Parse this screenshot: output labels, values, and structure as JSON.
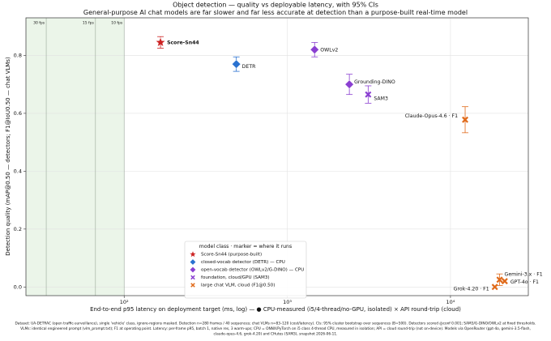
{
  "chart_data": {
    "type": "scatter",
    "title": "Object detection — quality vs deployable latency, with 95% CIs",
    "subtitle": "General-purpose AI chat models are far slower and far less accurate at detection than a purpose-built real-time model",
    "x_label": "End-to-end p95 latency on deployment target (ms, log)  —  ● CPU-measured (i5/4-thread/no-GPU, isolated)    × API round-trip (cloud)",
    "y_label": "Detection quality   (mAP@0.50 — detectors;  F1@IoU0.50 — chat VLMs)",
    "log_x": true,
    "grid": true,
    "xlim": [
      25,
      30000
    ],
    "ylim": [
      -0.03,
      0.93
    ],
    "xticks": [
      {
        "value": 100,
        "label": "10²"
      },
      {
        "value": 1000,
        "label": "10³"
      },
      {
        "value": 10000,
        "label": "10⁴"
      }
    ],
    "yticks": [
      {
        "value": 0,
        "label": "0.0"
      },
      {
        "value": 0.2,
        "label": "0.2"
      },
      {
        "value": 0.4,
        "label": "0.4"
      },
      {
        "value": 0.6,
        "label": "0.6"
      },
      {
        "value": 0.8,
        "label": "0.8"
      }
    ],
    "fps_lines": [
      {
        "value": 33.3,
        "label": "30 fps"
      },
      {
        "value": 66.7,
        "label": "15 fps"
      },
      {
        "value": 100,
        "label": "10 fps"
      }
    ],
    "legend_title": "model class  ·  marker = where it runs",
    "legend_position": "lower center",
    "series": [
      {
        "name": "Score-Sn44 (purpose-built)",
        "color": "#cc2222",
        "marker": "star",
        "x": [
          167
        ],
        "values": [
          0.845
        ],
        "errors": [
          0.02
        ],
        "point_labels": [
          "Score-Sn44"
        ]
      },
      {
        "name": "closed-vocab detector (DETR) — CPU",
        "color": "#2a72d0",
        "marker": "diamond",
        "x": [
          487
        ],
        "values": [
          0.77
        ],
        "errors": [
          0.025
        ],
        "point_labels": [
          "DETR"
        ]
      },
      {
        "name": "open-vocab detector (OWLv2/G-DINO) — CPU",
        "color": "#8a3fd1",
        "marker": "diamond",
        "x": [
          1470,
          2400
        ],
        "values": [
          0.82,
          0.7
        ],
        "errors": [
          0.025,
          0.035
        ],
        "point_labels": [
          "OWLv2",
          "Grounding-DINO"
        ]
      },
      {
        "name": "foundation, cloud/GPU (SAM3)",
        "color": "#8a3fd1",
        "marker": "x",
        "x": [
          3130
        ],
        "values": [
          0.665
        ],
        "errors": [
          0.03
        ],
        "point_labels": [
          "SAM3"
        ]
      },
      {
        "name": "large chat VLM, cloud (F1@0.50)",
        "color": "#e06a1a",
        "marker": "x",
        "x": [
          12300,
          20000,
          21500,
          18700
        ],
        "values": [
          0.578,
          0.025,
          0.02,
          0.0
        ],
        "errors": [
          0.045,
          0.02,
          0.0,
          0.0
        ],
        "point_labels": [
          "Claude-Opus-4.6 · F1",
          "Gemini-3.x · F1",
          "GPT-4o · F1",
          "Grok-4.20 · F1"
        ]
      }
    ],
    "footnote": [
      "Dataset: UA-DETRAC (open traffic-surveillance), single 'vehicle' class, ignore-regions masked.  Detection n=280 frames / 40 sequences; chat VLMs n=83–120 (cost/latency).  CIs: 95% cluster bootstrap over sequences (B=500).  Detectors scored @conf 0.001; SAM3/G-DINO/OWLv2 at fixed thresholds.",
      "VLMs: identical engineered prompt (vlm_prompt.txt); F1 at operating point.  Latency: per-frame p95, batch 1, native res, 3 warm-ups; CPU = ONNX/PyTorch on i5 class 4-thread CPU, measured in isolation; API = cloud round-trip (not on-device).  Models via OpenRouter (gpt-4o, gemini-3.5-flash,",
      "claude-opus-4.6, grok-4.20) and CHutes (SAM3), snapshot 2026-06-11."
    ]
  }
}
